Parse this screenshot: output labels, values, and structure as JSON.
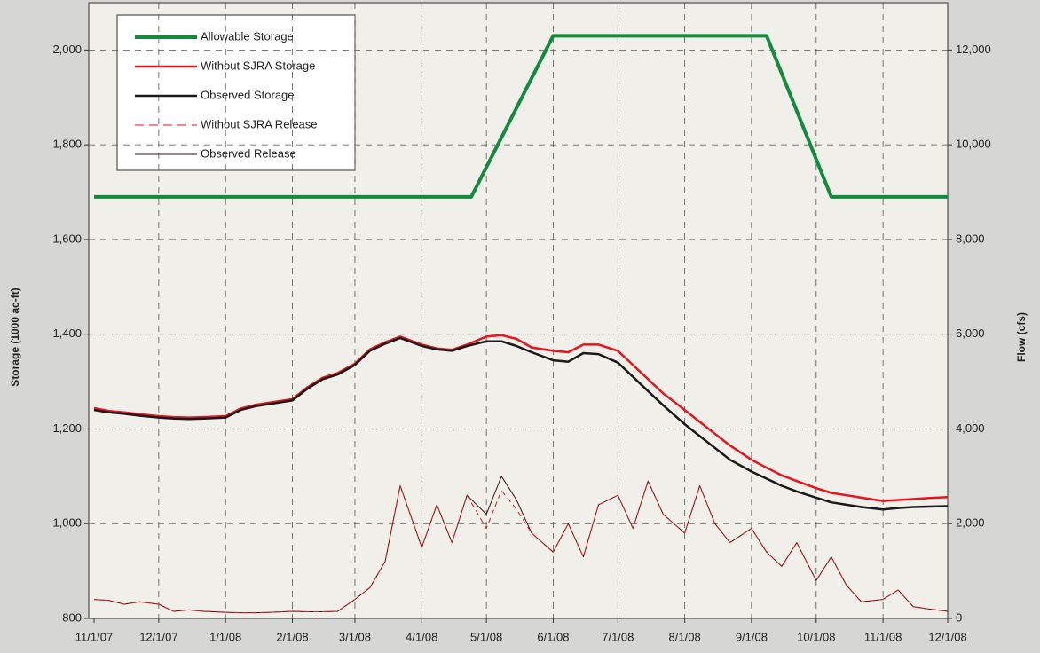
{
  "chart_data": {
    "type": "line",
    "ylabel": "Storage (1000 ac-ft)",
    "y2label": "Flow (cfs)",
    "xlim": [
      "11/1/07",
      "12/1/08"
    ],
    "xticks": [
      "11/1/07",
      "12/1/07",
      "1/1/08",
      "2/1/08",
      "3/1/08",
      "4/1/08",
      "5/1/08",
      "6/1/08",
      "7/1/08",
      "8/1/08",
      "9/1/08",
      "10/1/08",
      "11/1/08",
      "12/1/08"
    ],
    "ylim": [
      800,
      2100
    ],
    "yticks": [
      800,
      {
        "value": 1000,
        "label": "1,000"
      },
      {
        "value": 1200,
        "label": "1,200"
      },
      {
        "value": 1400,
        "label": "1,400"
      },
      {
        "value": 1600,
        "label": "1,600"
      },
      {
        "value": 1800,
        "label": "1,800"
      },
      {
        "value": 2000,
        "label": "2,000"
      }
    ],
    "y2lim": [
      0,
      13000
    ],
    "y2ticks": [
      0,
      {
        "value": 2000,
        "label": "2,000"
      },
      {
        "value": 4000,
        "label": "4,000"
      },
      {
        "value": 6000,
        "label": "6,000"
      },
      {
        "value": 8000,
        "label": "8,000"
      },
      {
        "value": 10000,
        "label": "10,000"
      },
      {
        "value": 12000,
        "label": "12,000"
      }
    ],
    "grid": true,
    "legend": "upper left",
    "x": [
      "11/1/07",
      "11/8/07",
      "11/15/07",
      "11/22/07",
      "12/1/07",
      "12/8/07",
      "12/15/07",
      "12/22/07",
      "1/1/08",
      "1/8/08",
      "1/15/08",
      "1/22/08",
      "2/1/08",
      "2/8/08",
      "2/15/08",
      "2/22/08",
      "3/1/08",
      "3/8/08",
      "3/15/08",
      "3/22/08",
      "4/1/08",
      "4/8/08",
      "4/15/08",
      "4/22/08",
      "5/1/08",
      "5/8/08",
      "5/15/08",
      "5/22/08",
      "6/1/08",
      "6/8/08",
      "6/15/08",
      "6/22/08",
      "7/1/08",
      "7/8/08",
      "7/15/08",
      "7/22/08",
      "8/1/08",
      "8/8/08",
      "8/15/08",
      "8/22/08",
      "9/1/08",
      "9/8/08",
      "9/15/08",
      "9/22/08",
      "10/1/08",
      "10/8/08",
      "10/15/08",
      "10/22/08",
      "11/1/08",
      "11/8/08",
      "11/15/08",
      "11/22/08",
      "12/1/08"
    ],
    "series": [
      {
        "name": "Allowable Storage",
        "color": "#138a3e",
        "width": 4,
        "x": [
          "11/1/07",
          "4/24/08",
          "6/1/08",
          "9/8/08",
          "10/8/08",
          "12/1/08"
        ],
        "values": [
          1690,
          1690,
          2030,
          2030,
          1690,
          1690
        ]
      },
      {
        "name": "Without SJRA Storage",
        "color": "#e8141c",
        "width": 2.5,
        "values": [
          1244,
          1238,
          1235,
          1231,
          1227,
          1225,
          1224,
          1225,
          1227,
          1243,
          1251,
          1256,
          1263,
          1288,
          1308,
          1318,
          1338,
          1368,
          1383,
          1395,
          1378,
          1370,
          1367,
          1378,
          1395,
          1398,
          1390,
          1372,
          1365,
          1362,
          1378,
          1378,
          1365,
          1335,
          1305,
          1275,
          1240,
          1215,
          1190,
          1165,
          1135,
          1118,
          1102,
          1090,
          1075,
          1065,
          1060,
          1055,
          1048,
          1050,
          1052,
          1054,
          1056
        ]
      },
      {
        "name": "Observed Storage",
        "color": "#1a1a1a",
        "width": 2.5,
        "values": [
          1240,
          1235,
          1232,
          1228,
          1224,
          1222,
          1221,
          1222,
          1224,
          1240,
          1248,
          1253,
          1260,
          1285,
          1305,
          1315,
          1335,
          1365,
          1380,
          1392,
          1375,
          1368,
          1365,
          1375,
          1385,
          1385,
          1375,
          1362,
          1345,
          1342,
          1360,
          1358,
          1340,
          1310,
          1280,
          1250,
          1210,
          1185,
          1160,
          1135,
          1110,
          1095,
          1080,
          1068,
          1055,
          1045,
          1040,
          1035,
          1030,
          1033,
          1035,
          1036,
          1037
        ]
      },
      {
        "name": "Without SJRA Release",
        "color": "#e8141c",
        "width": 1,
        "dash": true,
        "axis": "y2",
        "values": [
          400,
          380,
          300,
          350,
          300,
          150,
          180,
          150,
          130,
          120,
          120,
          130,
          150,
          140,
          140,
          150,
          400,
          650,
          1200,
          2800,
          1500,
          2400,
          1600,
          2600,
          1900,
          2700,
          2300,
          1800,
          1400,
          2000,
          1300,
          2400,
          2600,
          1900,
          2900,
          2200,
          1800,
          2800,
          2000,
          1600,
          1900,
          1400,
          1100,
          1600,
          800,
          1300,
          700,
          350,
          400,
          600,
          250,
          200,
          150
        ]
      },
      {
        "name": "Observed Release",
        "color": "#3a1414",
        "width": 1,
        "axis": "y2",
        "values": [
          400,
          380,
          300,
          350,
          300,
          150,
          180,
          150,
          130,
          120,
          120,
          130,
          150,
          140,
          140,
          150,
          400,
          650,
          1200,
          2800,
          1500,
          2400,
          1600,
          2600,
          2200,
          3000,
          2500,
          1800,
          1400,
          2000,
          1300,
          2400,
          2600,
          1900,
          2900,
          2200,
          1800,
          2800,
          2000,
          1600,
          1900,
          1400,
          1100,
          1600,
          800,
          1300,
          700,
          350,
          400,
          600,
          250,
          200,
          150
        ]
      }
    ]
  }
}
